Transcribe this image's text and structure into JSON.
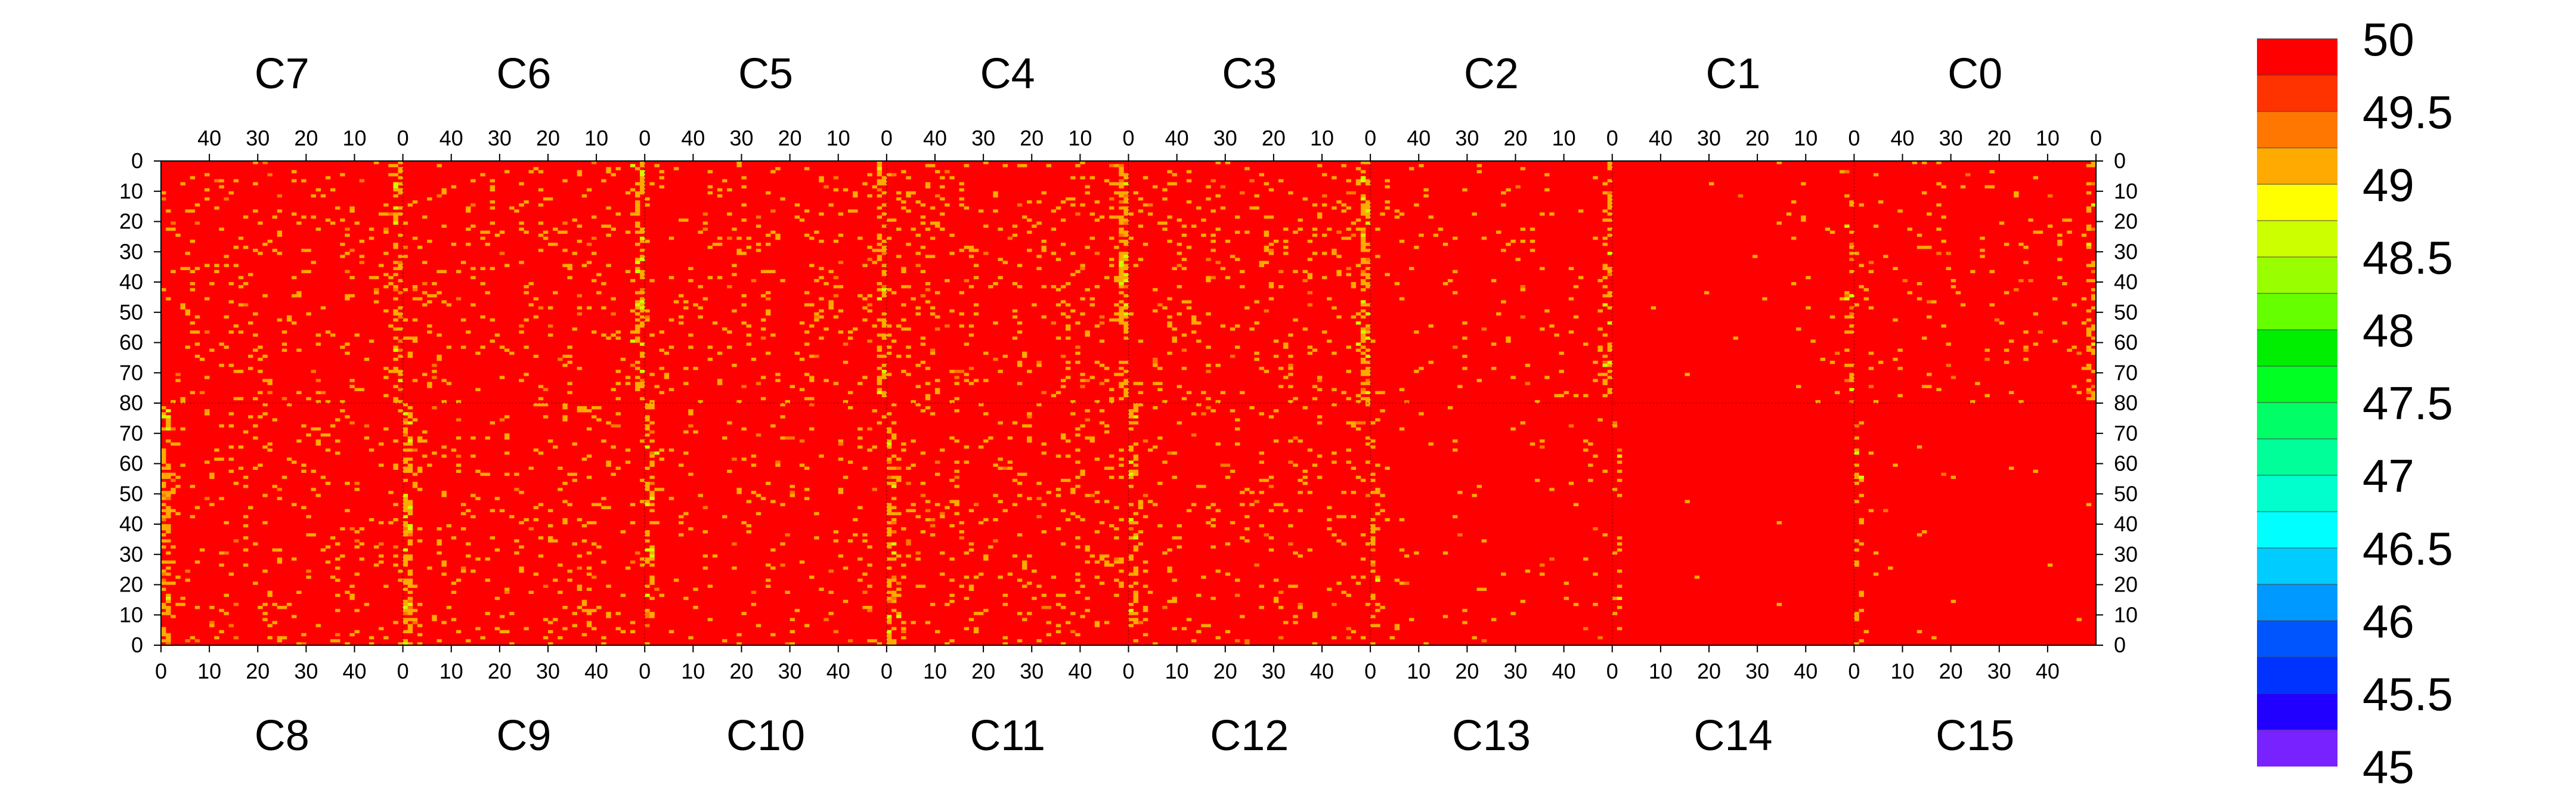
{
  "chart_data": {
    "type": "heatmap",
    "title": "",
    "top_panels": [
      "C7",
      "C6",
      "C5",
      "C4",
      "C3",
      "C2",
      "C1",
      "C0"
    ],
    "bottom_panels": [
      "C8",
      "C9",
      "C10",
      "C11",
      "C12",
      "C13",
      "C14",
      "C15"
    ],
    "panel_columns": 50,
    "panel_rows": 80,
    "top_x_ticks": [
      40,
      30,
      20,
      10,
      0
    ],
    "bottom_x_ticks": [
      0,
      10,
      20,
      30,
      40
    ],
    "y_ticks_upper": [
      0,
      10,
      20,
      30,
      40,
      50,
      60,
      70,
      80
    ],
    "y_ticks_lower": [
      80,
      70,
      60,
      50,
      40,
      30,
      20,
      10,
      0
    ],
    "value_range": [
      45,
      50
    ],
    "colorbar_labels": [
      "50",
      "49.5",
      "49",
      "48.5",
      "48",
      "47.5",
      "47",
      "46.5",
      "46",
      "45.5",
      "45"
    ],
    "colorbar_levels": [
      {
        "from": 49.75,
        "to": 50,
        "color": "#ff0000"
      },
      {
        "from": 49.5,
        "to": 49.75,
        "color": "#ff3300"
      },
      {
        "from": 49.25,
        "to": 49.5,
        "color": "#ff7700"
      },
      {
        "from": 49,
        "to": 49.25,
        "color": "#ffaa00"
      },
      {
        "from": 48.75,
        "to": 49,
        "color": "#ffff00"
      },
      {
        "from": 48.5,
        "to": 48.75,
        "color": "#ccff00"
      },
      {
        "from": 48.25,
        "to": 48.5,
        "color": "#99ff00"
      },
      {
        "from": 48,
        "to": 48.25,
        "color": "#66ff00"
      },
      {
        "from": 47.75,
        "to": 48,
        "color": "#00ee00"
      },
      {
        "from": 47.5,
        "to": 47.75,
        "color": "#00ff22"
      },
      {
        "from": 47.25,
        "to": 47.5,
        "color": "#00ff66"
      },
      {
        "from": 47,
        "to": 47.25,
        "color": "#00ff99"
      },
      {
        "from": 46.75,
        "to": 47,
        "color": "#00ffcc"
      },
      {
        "from": 46.5,
        "to": 46.75,
        "color": "#00ffff"
      },
      {
        "from": 46.25,
        "to": 46.5,
        "color": "#00ccff"
      },
      {
        "from": 46,
        "to": 46.25,
        "color": "#0099ff"
      },
      {
        "from": 45.75,
        "to": 46,
        "color": "#0055ff"
      },
      {
        "from": 45.5,
        "to": 45.75,
        "color": "#0033ff"
      },
      {
        "from": 45.25,
        "to": 45.5,
        "color": "#2200ff"
      },
      {
        "from": 45,
        "to": 45.25,
        "color": "#7722ff"
      }
    ],
    "background_value": 50,
    "common_deviation_value": 49.1,
    "deviation_colors": [
      "#ffaa00",
      "#ff7700",
      "#ccff00",
      "#66ff00"
    ],
    "panel_deviation_density_percent": {
      "C7": 6,
      "C6": 6,
      "C5": 6,
      "C4": 8,
      "C3": 7,
      "C2": 3,
      "C1": 1.5,
      "C0": 3,
      "C8": 6,
      "C9": 6,
      "C10": 4,
      "C11": 7,
      "C12": 6,
      "C13": 2,
      "C14": 0.3,
      "C15": 0.7
    },
    "grid": false,
    "legend": "colorbar-right"
  }
}
